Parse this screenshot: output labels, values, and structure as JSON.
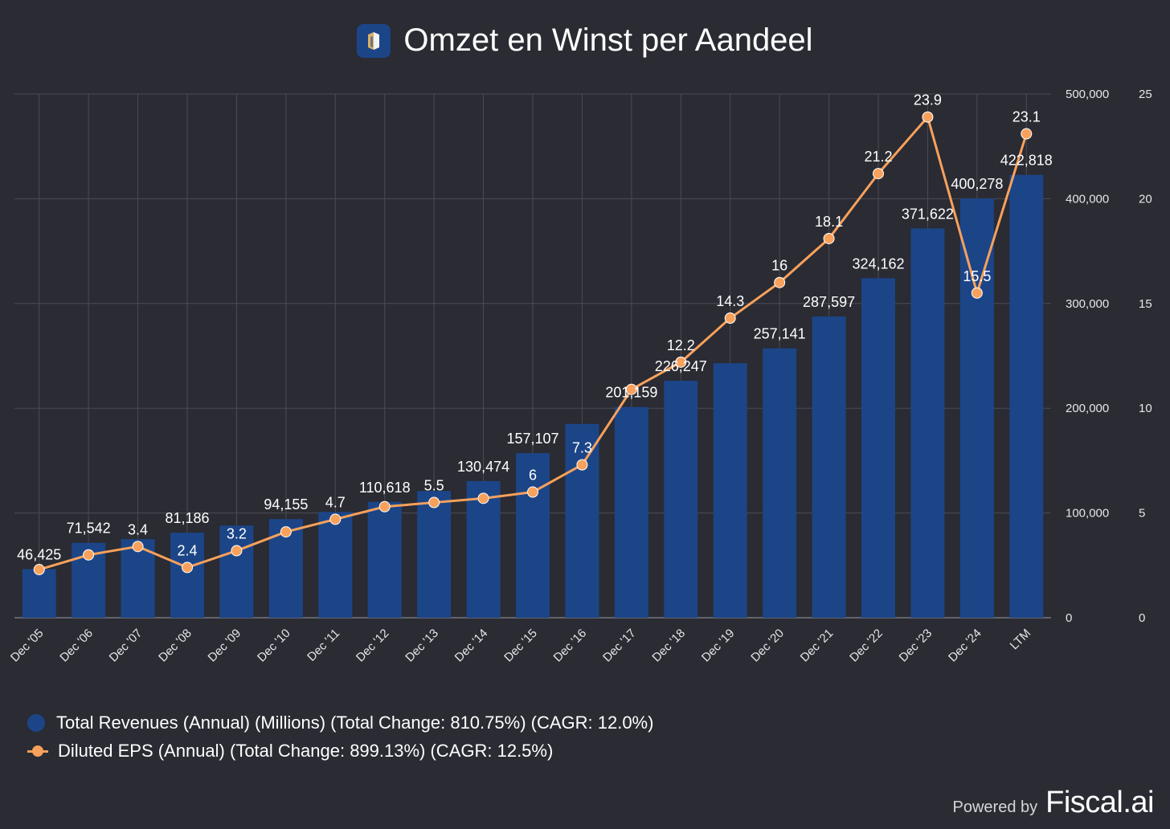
{
  "title": "Omzet en Winst per Aandeel",
  "logo_icon": "fiscal-ai-logo-icon",
  "footer": {
    "powered_by": "Powered by",
    "brand": "Fiscal.ai"
  },
  "colors": {
    "background": "#2a2b33",
    "bars": "#1c4588",
    "line": "#f7a15c",
    "grid": "#4a4c56",
    "text": "#ffffff"
  },
  "chart_data": {
    "type": "bar",
    "categories": [
      "Dec '05",
      "Dec '06",
      "Dec '07",
      "Dec '08",
      "Dec '09",
      "Dec '10",
      "Dec '11",
      "Dec '12",
      "Dec '13",
      "Dec '14",
      "Dec '15",
      "Dec '16",
      "Dec '17",
      "Dec '18",
      "Dec '19",
      "Dec '20",
      "Dec '21",
      "Dec '22",
      "Dec '23",
      "Dec '24",
      "LTM"
    ],
    "series": [
      {
        "name": "Total Revenues (Annual) (Millions) (Total Change: 810.75%) (CAGR: 12.0%)",
        "type": "bar",
        "axis": "right-outer",
        "values": [
          46425,
          71542,
          75000,
          81186,
          88000,
          94155,
          101000,
          110618,
          121000,
          130474,
          157107,
          185000,
          201159,
          226247,
          243000,
          257141,
          287597,
          324162,
          371622,
          400278,
          422818
        ],
        "labels": [
          "46,425",
          "71,542",
          "",
          "81,186",
          "",
          "94,155",
          "",
          "110,618",
          "",
          "130,474",
          "157,107",
          "",
          "201,159",
          "226,247",
          "",
          "257,141",
          "287,597",
          "324,162",
          "371,622",
          "400,278",
          "422,818"
        ]
      },
      {
        "name": "Diluted EPS (Annual) (Total Change: 899.13%) (CAGR: 12.5%)",
        "type": "line",
        "axis": "right",
        "values": [
          2.3,
          3.0,
          3.4,
          2.4,
          3.2,
          4.1,
          4.7,
          5.3,
          5.5,
          5.7,
          6.0,
          7.3,
          10.9,
          12.2,
          14.3,
          16.0,
          18.1,
          21.2,
          23.9,
          15.5,
          23.1
        ],
        "labels": [
          "",
          "",
          "3.4",
          "2.4",
          "3.2",
          "",
          "4.7",
          "",
          "5.5",
          "",
          "6",
          "7.3",
          "",
          "12.2",
          "14.3",
          "16",
          "18.1",
          "21.2",
          "23.9",
          "15.5",
          "23.1"
        ]
      }
    ],
    "y_axes": {
      "revenue": {
        "range": [
          0,
          500000
        ],
        "ticks": [
          "0",
          "100,000",
          "200,000",
          "300,000",
          "400,000",
          "500,000"
        ]
      },
      "eps": {
        "range": [
          0,
          25
        ],
        "ticks": [
          "0",
          "5",
          "10",
          "15",
          "20",
          "25"
        ]
      }
    },
    "grid": true,
    "legend_position": "bottom-left"
  }
}
